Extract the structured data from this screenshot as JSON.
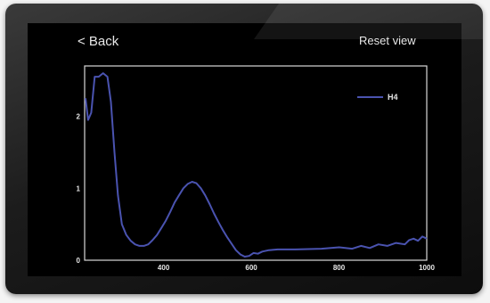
{
  "nav": {
    "back_label": "< Back",
    "reset_label": "Reset view"
  },
  "colors": {
    "screen_background": "#000000",
    "plot_frame": "#d9d9d9",
    "series_line": "#4a53b0"
  },
  "chart_data": {
    "type": "line",
    "title": "",
    "xlabel": "",
    "ylabel": "",
    "xlim": [
      220,
      1000
    ],
    "ylim": [
      0,
      2.7
    ],
    "x_ticks": [
      400,
      600,
      800,
      1000
    ],
    "x_tick_labels": [
      "400",
      "600",
      "800",
      "1000"
    ],
    "y_ticks": [
      0,
      1,
      2
    ],
    "y_tick_labels": [
      "0",
      "1",
      "2"
    ],
    "grid": false,
    "legend_position": "top-right",
    "series": [
      {
        "name": "H4",
        "color": "#4a53b0",
        "x": [
          222,
          228,
          235,
          243,
          252,
          262,
          272,
          280,
          288,
          296,
          305,
          315,
          325,
          335,
          345,
          355,
          365,
          375,
          385,
          395,
          405,
          415,
          425,
          435,
          445,
          455,
          465,
          475,
          485,
          495,
          505,
          515,
          525,
          535,
          545,
          555,
          565,
          575,
          585,
          595,
          605,
          615,
          625,
          640,
          660,
          700,
          760,
          800,
          830,
          850,
          870,
          890,
          910,
          930,
          950,
          960,
          970,
          980,
          990,
          1000
        ],
        "y": [
          2.25,
          1.95,
          2.05,
          2.55,
          2.55,
          2.6,
          2.55,
          2.2,
          1.5,
          0.9,
          0.5,
          0.35,
          0.27,
          0.22,
          0.2,
          0.2,
          0.22,
          0.28,
          0.35,
          0.45,
          0.55,
          0.67,
          0.8,
          0.9,
          1.0,
          1.06,
          1.09,
          1.07,
          1.0,
          0.9,
          0.78,
          0.65,
          0.53,
          0.42,
          0.32,
          0.23,
          0.14,
          0.08,
          0.05,
          0.06,
          0.1,
          0.09,
          0.12,
          0.14,
          0.15,
          0.15,
          0.16,
          0.18,
          0.16,
          0.2,
          0.17,
          0.22,
          0.2,
          0.24,
          0.22,
          0.28,
          0.3,
          0.27,
          0.33,
          0.3
        ]
      }
    ]
  }
}
